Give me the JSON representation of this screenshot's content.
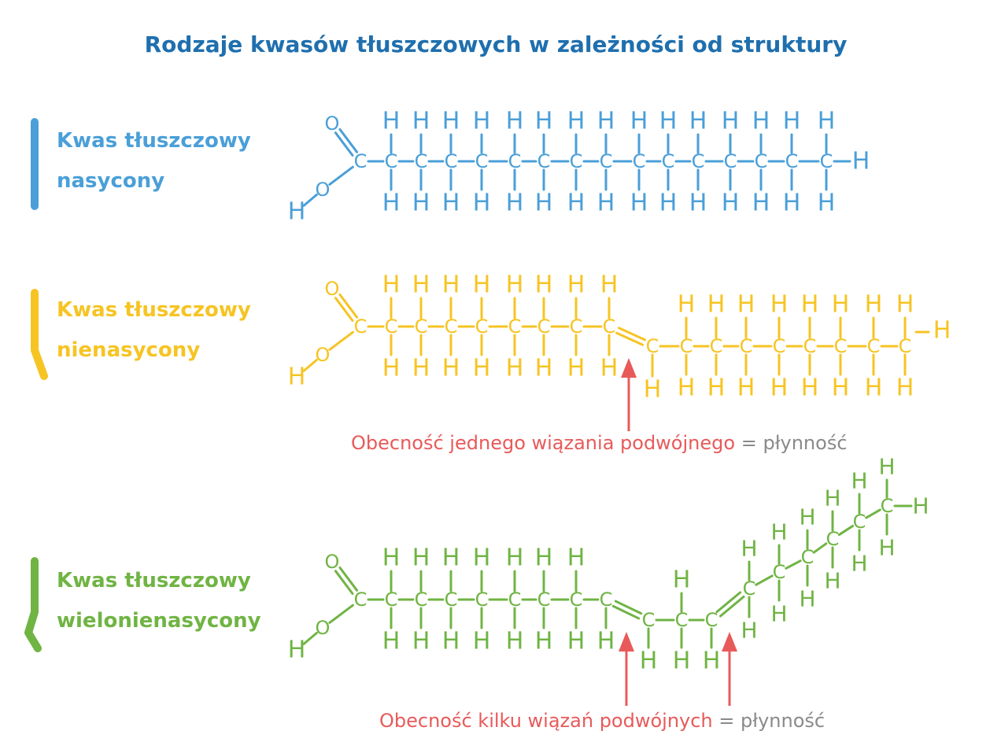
{
  "title": "Rodzaje kwasów tłuszczowych w zależności od struktury",
  "acids": [
    {
      "label_line1": "Kwas tłuszczowy",
      "label_line2": "nasycony",
      "color": "#4a9fd8"
    },
    {
      "label_line1": "Kwas tłuszczowy",
      "label_line2": "nienasycony",
      "color": "#f6c423"
    },
    {
      "label_line1": "Kwas tłuszczowy",
      "label_line2": "wielonienasycony",
      "color": "#70b444"
    }
  ],
  "annotations": [
    {
      "text": "Obecność jednego wiązania podwójnego",
      "equals": "=",
      "result": "płynność"
    },
    {
      "text": "Obecność kilku wiązań podwójnych",
      "equals": "=",
      "result": "płynność"
    }
  ],
  "atoms": {
    "carbon": "C",
    "hydrogen": "H",
    "oxygen": "O"
  },
  "colors": {
    "title": "#1f6fae",
    "arrow": "#e85a5a",
    "note_grey": "#8a8a8a"
  }
}
